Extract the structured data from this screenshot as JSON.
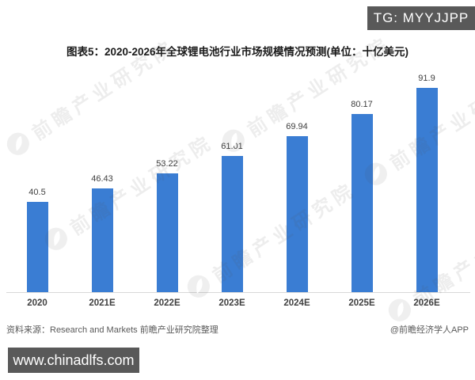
{
  "header": {
    "tg_badge": "TG: MYYJJPP"
  },
  "chart_data": {
    "type": "bar",
    "title": "图表5：2020-2026年全球锂电池行业市场规模情况预测(单位：十亿美元)",
    "categories": [
      "2020",
      "2021E",
      "2022E",
      "2023E",
      "2024E",
      "2025E",
      "2026E"
    ],
    "values": [
      40.5,
      46.43,
      53.22,
      61.01,
      69.94,
      80.17,
      91.9
    ],
    "xlabel": "",
    "ylabel": "",
    "unit": "十亿美元",
    "ylim": [
      0,
      101
    ],
    "grid": false,
    "legend": false,
    "bar_color": "#3a7dd3",
    "value_label_color": "#404040"
  },
  "watermark": {
    "text": "前瞻产业研究院"
  },
  "footer": {
    "source": "资料来源：Research and Markets 前瞻产业研究院整理",
    "credit": "@前瞻经济学人APP"
  },
  "overlay": {
    "site": "www.chinadlfs.com"
  }
}
